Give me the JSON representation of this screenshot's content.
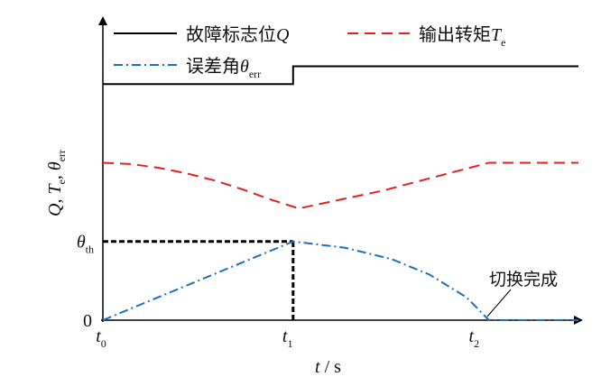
{
  "chart_data": {
    "type": "line",
    "xlabel": {
      "var": "t",
      "sep": " / ",
      "unit": "s"
    },
    "ylabel": {
      "q": "Q",
      "sep1": ", ",
      "t": "T",
      "t_sub": "e",
      "sep2": ", ",
      "theta": "θ",
      "theta_sub": "err"
    },
    "x_ticks": [
      {
        "name": "t0",
        "base": "t",
        "sub": "0",
        "x": 0
      },
      {
        "name": "t1",
        "base": "t",
        "sub": "1",
        "x": 1
      },
      {
        "name": "t2",
        "base": "t",
        "sub": "2",
        "x": 2
      }
    ],
    "y_ticks": [
      {
        "name": "zero",
        "label": "0",
        "y": 0
      },
      {
        "name": "theta-th",
        "base": "θ",
        "sub": "th",
        "y": 0.31
      }
    ],
    "xlim": [
      0,
      2.55
    ],
    "ylim": [
      0,
      1.19
    ],
    "legend": {
      "placement": "top",
      "entries": [
        {
          "series": "fault",
          "label": "故障标志位",
          "var": "Q",
          "sub": ""
        },
        {
          "series": "torque",
          "label": "输出转矩",
          "var": "T",
          "sub": "e"
        },
        {
          "series": "error",
          "label": "误差角",
          "var": "θ",
          "sub": "err"
        }
      ]
    },
    "series": [
      {
        "name": "fault",
        "color": "#000000",
        "style": "solid",
        "points": [
          [
            0,
            0.93
          ],
          [
            1.02,
            0.93
          ],
          [
            1.02,
            1.0
          ],
          [
            2.55,
            1.0
          ]
        ]
      },
      {
        "name": "torque",
        "color": "#e3201b",
        "style": "dashed",
        "points": [
          [
            0,
            0.62
          ],
          [
            0.15,
            0.615
          ],
          [
            0.3,
            0.6
          ],
          [
            0.45,
            0.578
          ],
          [
            0.6,
            0.55
          ],
          [
            0.75,
            0.515
          ],
          [
            0.9,
            0.475
          ],
          [
            1.05,
            0.44
          ],
          [
            1.5,
            0.51
          ],
          [
            2.07,
            0.62
          ],
          [
            2.55,
            0.62
          ]
        ]
      },
      {
        "name": "error",
        "color": "#1f6fbf",
        "style": "dashdot",
        "points": [
          [
            0,
            0.0
          ],
          [
            1.02,
            0.31
          ],
          [
            1.3,
            0.285
          ],
          [
            1.55,
            0.24
          ],
          [
            1.75,
            0.18
          ],
          [
            1.95,
            0.09
          ],
          [
            2.07,
            0.0
          ],
          [
            2.55,
            0.0
          ]
        ]
      }
    ],
    "reference_lines": [
      {
        "name": "theta-th-horizontal",
        "from": [
          0,
          0.31
        ],
        "to": [
          1.02,
          0.31
        ]
      },
      {
        "name": "t1-vertical",
        "from": [
          1.02,
          0.0
        ],
        "to": [
          1.02,
          0.31
        ]
      }
    ],
    "annotations": [
      {
        "name": "switch-complete",
        "text": "切换完成",
        "target": [
          2.07,
          0.0
        ]
      }
    ],
    "grid": false
  }
}
